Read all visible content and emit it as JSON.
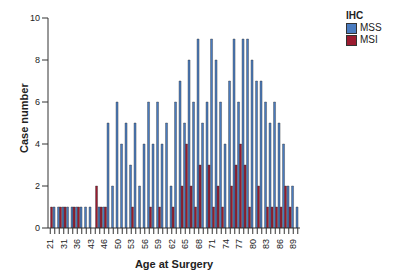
{
  "chart_data": {
    "type": "bar",
    "x_label": "Age at Surgery",
    "y_label": "Case number",
    "legend_title": "IHC",
    "legend": "upper right",
    "grid": false,
    "categories": [
      21,
      null,
      null,
      31,
      null,
      null,
      36,
      null,
      null,
      43,
      null,
      null,
      46,
      null,
      null,
      50,
      null,
      null,
      53,
      null,
      null,
      56,
      null,
      null,
      59,
      null,
      null,
      62,
      null,
      null,
      65,
      null,
      null,
      68,
      null,
      null,
      71,
      null,
      null,
      74,
      null,
      null,
      77,
      null,
      null,
      80,
      null,
      null,
      83,
      null,
      null,
      86,
      null,
      null,
      89,
      null
    ],
    "series": [
      {
        "name": "MSS",
        "color": "#4a7cc0",
        "values": [
          0,
          1,
          1,
          1,
          1,
          1,
          1,
          1,
          1,
          1,
          0,
          1,
          1,
          5,
          2,
          6,
          4,
          5,
          3,
          5,
          2,
          4,
          6,
          4,
          6,
          4,
          5,
          2,
          6,
          7,
          5,
          8,
          6,
          9,
          5,
          6,
          9,
          8,
          6,
          4,
          7,
          9,
          6,
          9,
          9,
          8,
          7,
          7,
          6,
          5,
          6,
          5,
          4,
          2,
          2,
          1
        ]
      },
      {
        "name": "MSI",
        "color": "#9b1b30",
        "values": [
          1,
          0,
          1,
          1,
          0,
          1,
          1,
          0,
          0,
          0,
          2,
          1,
          1,
          0,
          0,
          0,
          0,
          0,
          1,
          0,
          0,
          0,
          1,
          0,
          1,
          0,
          0,
          1,
          0,
          2,
          4,
          2,
          1,
          3,
          0,
          3,
          1,
          2,
          1,
          0,
          2,
          3,
          4,
          3,
          1,
          0,
          2,
          0,
          1,
          1,
          1,
          1,
          2,
          1,
          0,
          0
        ]
      }
    ],
    "ylim": [
      0,
      10
    ],
    "yticks": [
      0,
      2,
      4,
      6,
      8,
      10
    ]
  }
}
